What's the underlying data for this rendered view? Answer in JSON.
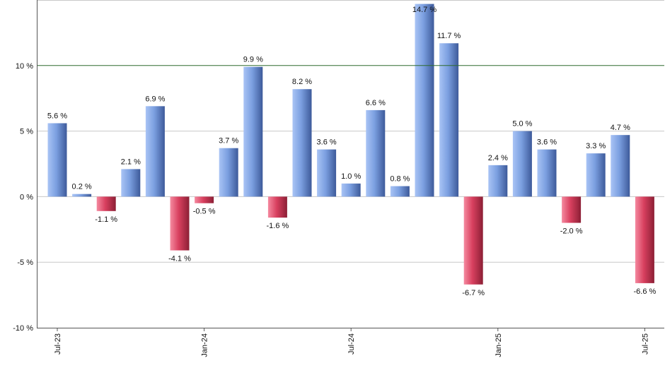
{
  "chart_data": {
    "type": "bar",
    "title": "",
    "xlabel": "",
    "ylabel": "",
    "ylim": [
      -10,
      15
    ],
    "y_ticks": [
      10,
      5,
      0,
      -5,
      -10
    ],
    "y_tick_labels": [
      "10 %",
      "5 %",
      "0 %",
      "-5 %",
      "-10 %"
    ],
    "reference_line": 10,
    "values": [
      5.6,
      0.2,
      -1.1,
      2.1,
      6.9,
      -4.1,
      -0.5,
      3.7,
      9.9,
      -1.6,
      8.2,
      3.6,
      1.0,
      6.6,
      0.8,
      14.7,
      11.7,
      -6.7,
      2.4,
      5.0,
      3.6,
      -2.0,
      3.3,
      4.7,
      -6.6
    ],
    "data_labels": [
      "5.6 %",
      "0.2 %",
      "-1.1 %",
      "2.1 %",
      "6.9 %",
      "-4.1 %",
      "-0.5 %",
      "3.7 %",
      "9.9 %",
      "-1.6 %",
      "8.2 %",
      "3.6 %",
      "1.0 %",
      "6.6 %",
      "0.8 %",
      "14.7 %",
      "11.7 %",
      "-6.7 %",
      "2.4 %",
      "5.0 %",
      "3.6 %",
      "-2.0 %",
      "3.3 %",
      "4.7 %",
      "-6.6 %"
    ],
    "x_tick_labels": [
      {
        "index": 0,
        "label": "Jul-23"
      },
      {
        "index": 6,
        "label": "Jan-24"
      },
      {
        "index": 12,
        "label": "Jul-24"
      },
      {
        "index": 18,
        "label": "Jan-25"
      },
      {
        "index": 24,
        "label": "Jul-25"
      }
    ],
    "grid": true,
    "colors": {
      "positive_light": "#a9c4f5",
      "positive_mid": "#7b9fe0",
      "positive_dark": "#3d5a9a",
      "negative_light": "#f58aa0",
      "negative_mid": "#d8405f",
      "negative_dark": "#8c1f35",
      "grid": "#c8c8c8",
      "reference": "#2e6b2e",
      "axis": "#555555"
    }
  }
}
